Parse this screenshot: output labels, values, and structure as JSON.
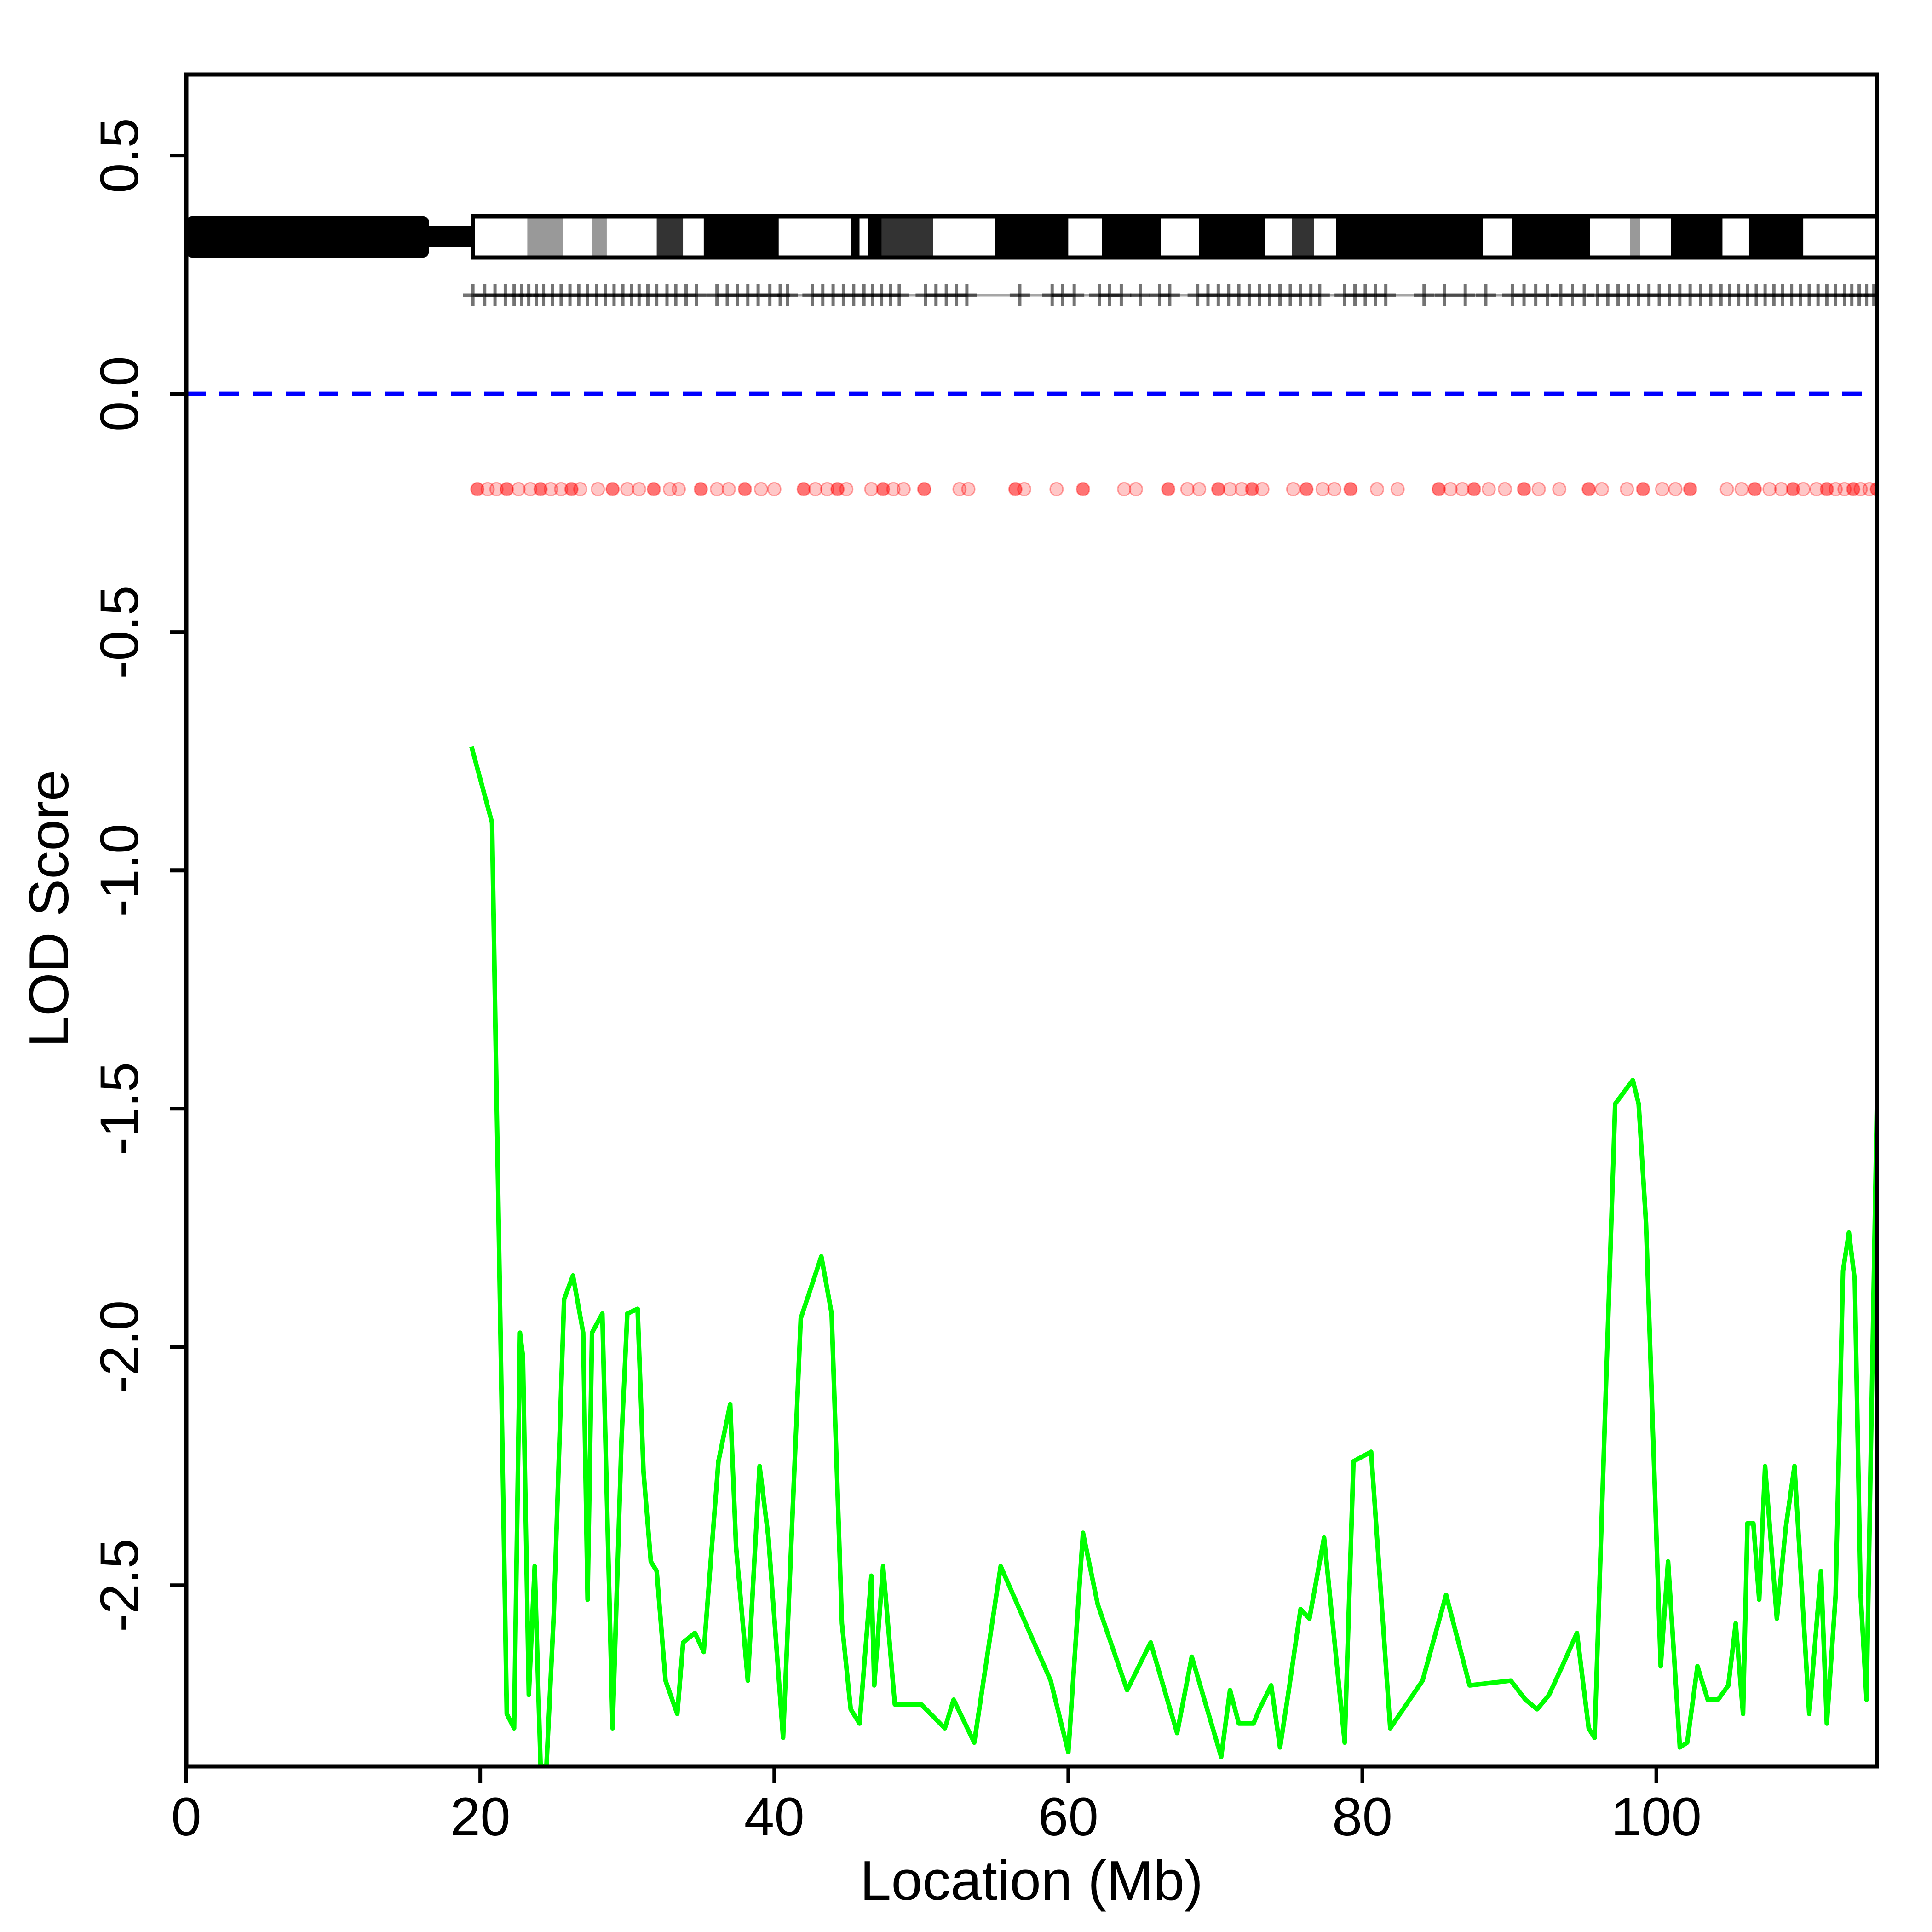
{
  "chart_data": {
    "type": "line",
    "xlabel": "Location (Mb)",
    "ylabel": "LOD Score",
    "xlim": [
      0,
      115
    ],
    "ylim": [
      -2.88,
      0.67
    ],
    "x_ticks": [
      0,
      20,
      40,
      60,
      80,
      100
    ],
    "x_tick_labels": [
      "0",
      "20",
      "40",
      "60",
      "80",
      "100"
    ],
    "y_ticks": [
      0.5,
      0.0,
      -0.5,
      -1.0,
      -1.5,
      -2.0,
      -2.5
    ],
    "y_tick_labels": [
      "0.5",
      "0.0",
      "-0.5",
      "-1.0",
      "-1.5",
      "-2.0",
      "-2.5"
    ],
    "reference_line": {
      "y": 0.0,
      "color": "#0000ff",
      "style": "dashed"
    },
    "series": [
      {
        "color": "#00ff00",
        "x": [
          19.4,
          20.8,
          21.8,
          22.3,
          22.7,
          22.9,
          23.3,
          23.7,
          24.1,
          24.5,
          25.0,
          25.7,
          26.3,
          27.0,
          27.3,
          27.6,
          28.3,
          29.0,
          29.6,
          30.0,
          30.7,
          31.1,
          31.6,
          32.0,
          32.6,
          33.4,
          33.8,
          34.6,
          35.2,
          36.2,
          37.0,
          37.4,
          38.2,
          39.0,
          39.6,
          40.6,
          41.8,
          43.2,
          43.9,
          44.6,
          45.2,
          45.8,
          46.6,
          46.8,
          47.4,
          48.2,
          50.0,
          51.6,
          52.2,
          53.6,
          55.4,
          58.8,
          60.0,
          61.0,
          62.0,
          64.0,
          65.6,
          67.4,
          68.4,
          70.4,
          71.0,
          71.6,
          72.6,
          73.0,
          73.8,
          74.4,
          75.0,
          75.8,
          76.4,
          77.4,
          78.8,
          79.4,
          80.6,
          81.9,
          84.1,
          85.7,
          87.3,
          90.1,
          91.1,
          91.9,
          92.7,
          93.6,
          94.6,
          95.4,
          95.8,
          97.2,
          98.4,
          98.8,
          99.3,
          100.3,
          100.8,
          101.6,
          102.1,
          102.8,
          103.5,
          104.2,
          104.9,
          105.4,
          105.9,
          106.2,
          106.6,
          107.0,
          107.4,
          108.2,
          108.8,
          109.4,
          110.4,
          111.2,
          111.6,
          112.2,
          112.7,
          113.1,
          113.5,
          113.9,
          114.3,
          115.0
        ],
        "y": [
          -0.74,
          -0.9,
          -2.77,
          -2.8,
          -1.97,
          -2.02,
          -2.73,
          -2.46,
          -2.88,
          -2.88,
          -2.56,
          -1.9,
          -1.85,
          -1.97,
          -2.53,
          -1.97,
          -1.93,
          -2.8,
          -2.2,
          -1.93,
          -1.92,
          -2.26,
          -2.45,
          -2.47,
          -2.7,
          -2.77,
          -2.62,
          -2.6,
          -2.64,
          -2.24,
          -2.12,
          -2.42,
          -2.7,
          -2.25,
          -2.4,
          -2.82,
          -1.94,
          -1.81,
          -1.93,
          -2.58,
          -2.76,
          -2.79,
          -2.48,
          -2.71,
          -2.46,
          -2.75,
          -2.75,
          -2.8,
          -2.74,
          -2.83,
          -2.46,
          -2.7,
          -2.85,
          -2.39,
          -2.54,
          -2.72,
          -2.62,
          -2.81,
          -2.65,
          -2.86,
          -2.72,
          -2.79,
          -2.79,
          -2.76,
          -2.71,
          -2.84,
          -2.72,
          -2.55,
          -2.57,
          -2.4,
          -2.83,
          -2.24,
          -2.22,
          -2.8,
          -2.7,
          -2.52,
          -2.71,
          -2.7,
          -2.74,
          -2.76,
          -2.73,
          -2.67,
          -2.6,
          -2.8,
          -2.82,
          -1.49,
          -1.44,
          -1.49,
          -1.74,
          -2.67,
          -2.45,
          -2.84,
          -2.83,
          -2.67,
          -2.74,
          -2.74,
          -2.71,
          -2.58,
          -2.77,
          -2.37,
          -2.37,
          -2.53,
          -2.25,
          -2.57,
          -2.38,
          -2.25,
          -2.77,
          -2.47,
          -2.79,
          -2.52,
          -1.84,
          -1.76,
          -1.86,
          -2.52,
          -2.74,
          -1.5
        ]
      }
    ],
    "chromosome_bands": [
      {
        "start": 0.0,
        "end": 16.5,
        "color": "#000000"
      },
      {
        "start": 16.5,
        "end": 19.5,
        "color": "#000000"
      },
      {
        "start": 19.5,
        "end": 23.2,
        "color": "#ffffff"
      },
      {
        "start": 23.2,
        "end": 25.6,
        "color": "#999999"
      },
      {
        "start": 25.6,
        "end": 27.6,
        "color": "#ffffff"
      },
      {
        "start": 27.6,
        "end": 28.6,
        "color": "#999999"
      },
      {
        "start": 28.6,
        "end": 32.0,
        "color": "#ffffff"
      },
      {
        "start": 32.0,
        "end": 33.8,
        "color": "#333333"
      },
      {
        "start": 33.8,
        "end": 35.2,
        "color": "#ffffff"
      },
      {
        "start": 35.2,
        "end": 40.3,
        "color": "#000000"
      },
      {
        "start": 40.3,
        "end": 45.2,
        "color": "#ffffff"
      },
      {
        "start": 45.2,
        "end": 45.8,
        "color": "#000000"
      },
      {
        "start": 45.8,
        "end": 46.4,
        "color": "#ffffff"
      },
      {
        "start": 46.4,
        "end": 47.3,
        "color": "#000000"
      },
      {
        "start": 47.3,
        "end": 50.8,
        "color": "#333333"
      },
      {
        "start": 50.8,
        "end": 55.0,
        "color": "#ffffff"
      },
      {
        "start": 55.0,
        "end": 60.0,
        "color": "#000000"
      },
      {
        "start": 60.0,
        "end": 62.3,
        "color": "#ffffff"
      },
      {
        "start": 62.3,
        "end": 66.3,
        "color": "#000000"
      },
      {
        "start": 66.3,
        "end": 68.9,
        "color": "#ffffff"
      },
      {
        "start": 68.9,
        "end": 73.4,
        "color": "#000000"
      },
      {
        "start": 73.4,
        "end": 75.2,
        "color": "#ffffff"
      },
      {
        "start": 75.2,
        "end": 76.7,
        "color": "#333333"
      },
      {
        "start": 76.7,
        "end": 78.2,
        "color": "#ffffff"
      },
      {
        "start": 78.2,
        "end": 88.2,
        "color": "#000000"
      },
      {
        "start": 88.2,
        "end": 90.2,
        "color": "#ffffff"
      },
      {
        "start": 90.2,
        "end": 95.5,
        "color": "#000000"
      },
      {
        "start": 95.5,
        "end": 98.2,
        "color": "#ffffff"
      },
      {
        "start": 98.2,
        "end": 98.9,
        "color": "#999999"
      },
      {
        "start": 98.9,
        "end": 101.0,
        "color": "#ffffff"
      },
      {
        "start": 101.0,
        "end": 104.5,
        "color": "#000000"
      },
      {
        "start": 104.5,
        "end": 106.3,
        "color": "#ffffff"
      },
      {
        "start": 106.3,
        "end": 110.0,
        "color": "#000000"
      },
      {
        "start": 110.0,
        "end": 115.0,
        "color": "#ffffff"
      }
    ],
    "markers_plus": [
      19.5,
      20.3,
      21.0,
      21.7,
      22.3,
      22.8,
      23.3,
      23.8,
      24.3,
      24.9,
      25.5,
      26.1,
      26.7,
      27.3,
      27.9,
      28.5,
      29.1,
      29.7,
      30.3,
      30.8,
      31.4,
      32.0,
      32.7,
      33.3,
      34.0,
      34.7,
      36.1,
      36.8,
      37.5,
      38.2,
      38.9,
      39.7,
      40.4,
      40.9,
      42.6,
      43.3,
      44.0,
      44.7,
      45.4,
      46.1,
      46.7,
      47.3,
      47.9,
      48.5,
      50.3,
      51.0,
      51.7,
      52.4,
      53.1,
      56.7,
      58.9,
      59.6,
      60.4,
      62.1,
      62.8,
      63.6,
      64.9,
      66.2,
      66.9,
      68.8,
      69.5,
      70.2,
      70.9,
      71.6,
      72.3,
      73.0,
      73.7,
      74.4,
      75.1,
      75.8,
      76.5,
      77.1,
      78.8,
      79.5,
      80.2,
      80.9,
      81.6,
      84.2,
      85.6,
      87.0,
      88.4,
      90.2,
      91.0,
      91.8,
      92.6,
      93.5,
      94.3,
      95.1,
      96.0,
      96.7,
      97.4,
      98.1,
      98.8,
      99.5,
      100.2,
      100.9,
      101.6,
      102.3,
      103.0,
      103.7,
      104.4,
      105.0,
      105.6,
      106.2,
      106.8,
      107.4,
      108.0,
      108.6,
      109.2,
      109.8,
      110.4,
      111.0,
      111.6,
      112.2,
      112.8,
      113.3,
      113.8,
      114.3,
      114.8
    ],
    "markers_points": [
      19.8,
      20.5,
      21.1,
      21.8,
      22.6,
      23.4,
      24.1,
      24.8,
      25.5,
      26.2,
      26.8,
      28.0,
      29.0,
      30.0,
      30.8,
      31.8,
      32.9,
      33.5,
      35.0,
      36.1,
      36.9,
      38.0,
      39.1,
      40.0,
      42.0,
      42.8,
      43.6,
      44.3,
      44.9,
      46.6,
      47.4,
      48.1,
      48.8,
      50.2,
      52.6,
      53.2,
      56.4,
      57.0,
      59.2,
      61.0,
      63.8,
      64.6,
      66.8,
      68.1,
      68.9,
      70.2,
      71.0,
      71.8,
      72.5,
      73.2,
      75.3,
      76.2,
      77.3,
      78.1,
      79.2,
      81.0,
      82.4,
      85.2,
      86.0,
      86.8,
      87.6,
      88.6,
      89.7,
      91.0,
      92.0,
      93.4,
      95.4,
      96.3,
      98.0,
      99.1,
      100.4,
      101.3,
      102.3,
      104.8,
      105.8,
      106.7,
      107.7,
      108.5,
      109.3,
      110.0,
      110.9,
      111.6,
      112.2,
      112.8,
      113.4,
      113.9,
      114.5,
      115.0
    ]
  }
}
